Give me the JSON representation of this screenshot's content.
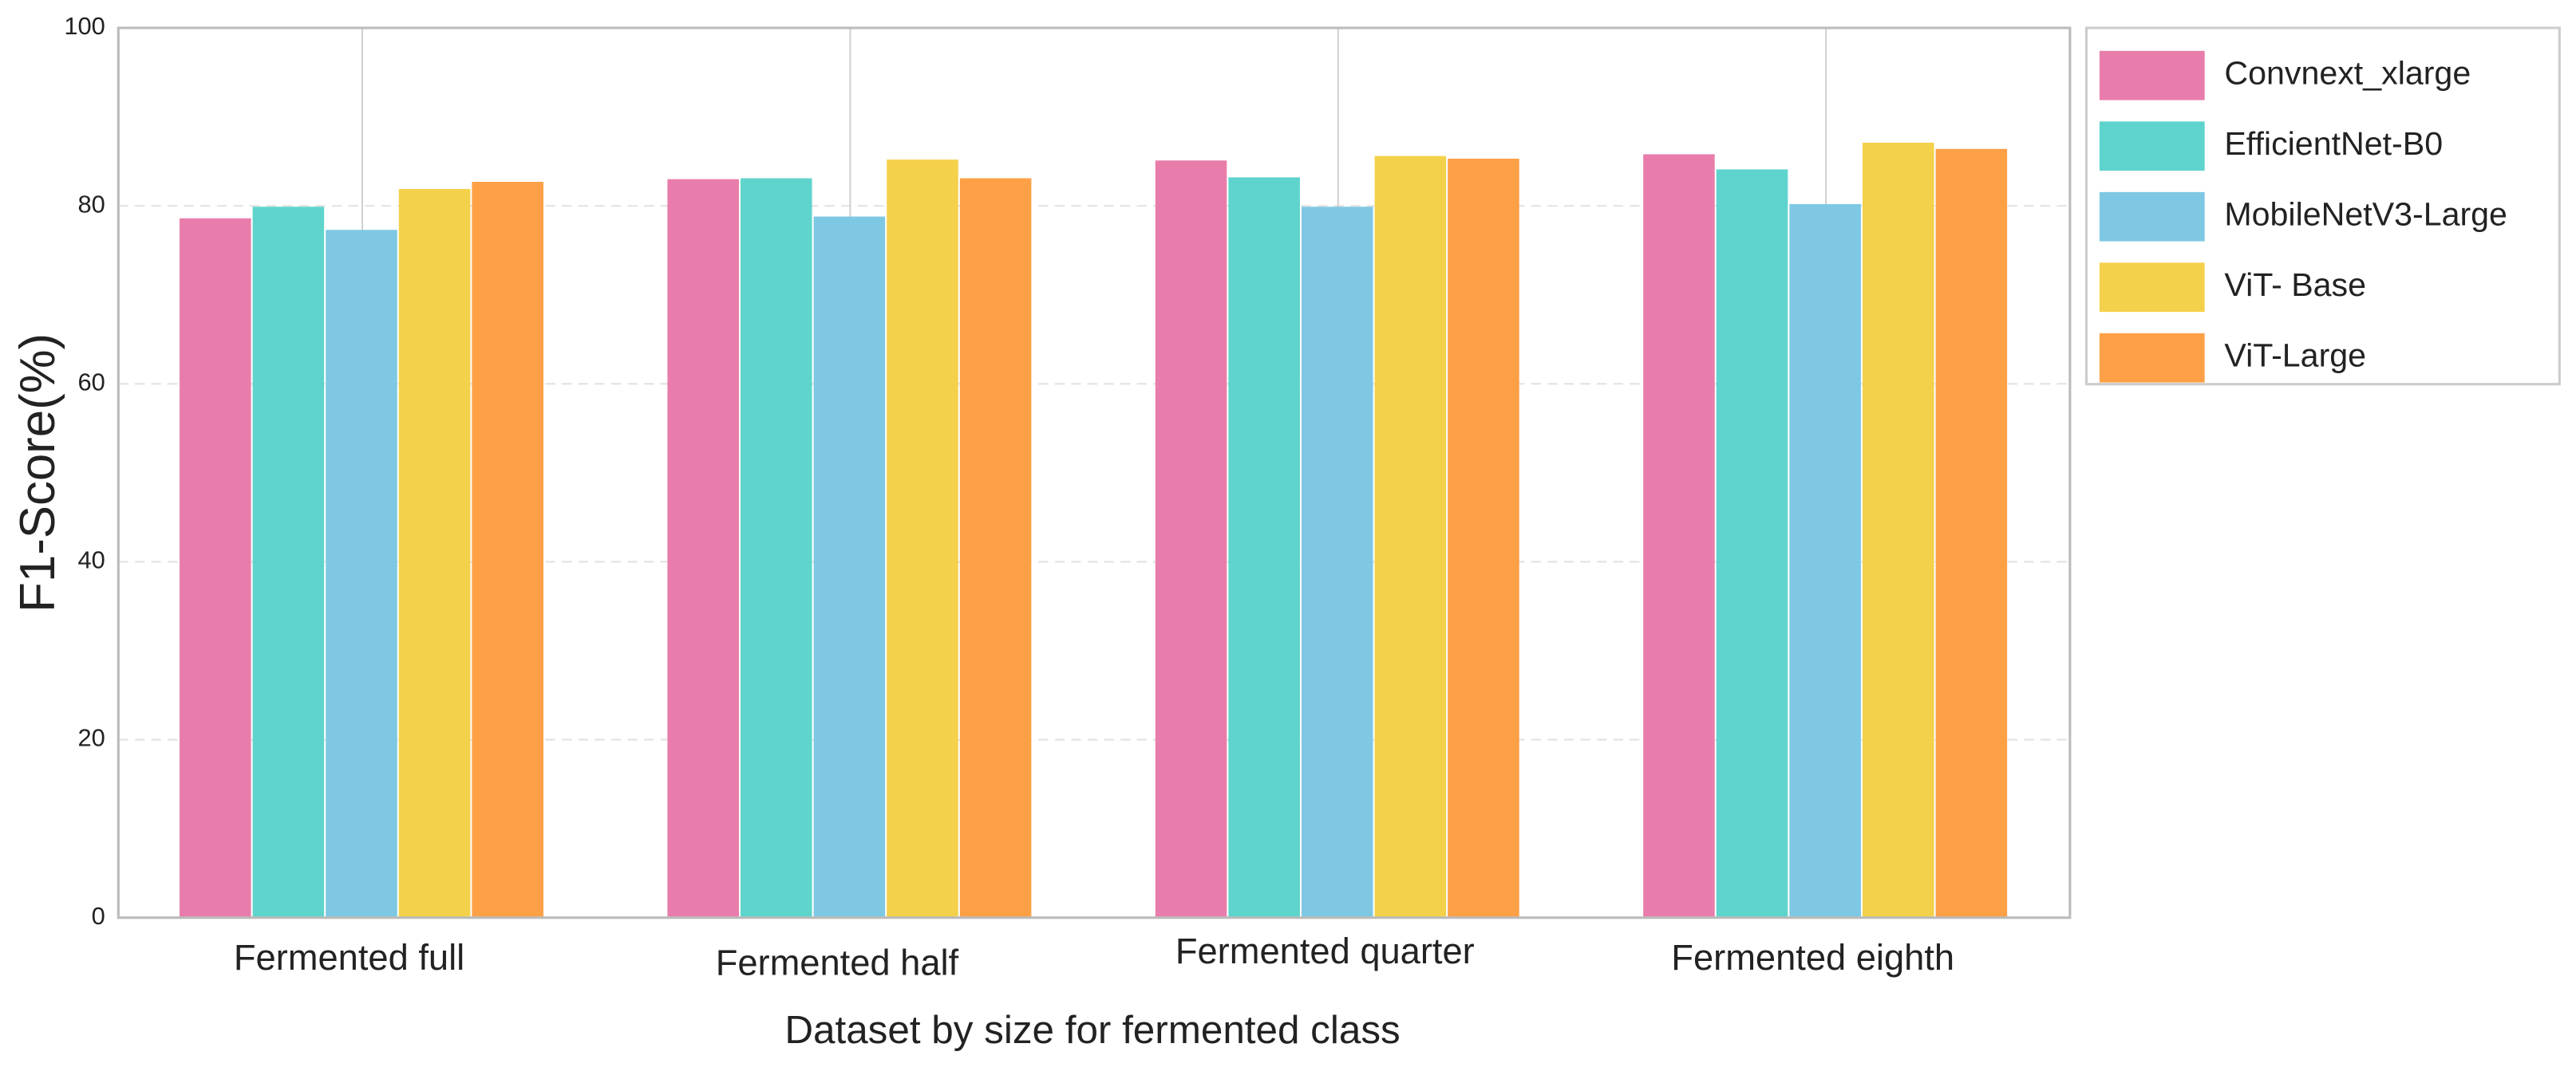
{
  "chart_data": {
    "type": "bar",
    "x_label": "Dataset by size for fermented class",
    "y_label": "F1-Score(%)",
    "categories": [
      "Fermented full",
      "Fermented half",
      "Fermented quarter",
      "Fermented eighth"
    ],
    "series": [
      {
        "name": "Convnext_xlarge",
        "color": "#e87dab",
        "values": [
          78.6,
          83.0,
          85.1,
          85.8
        ]
      },
      {
        "name": "EfficientNet-B0",
        "color": "#5ed4cc",
        "values": [
          79.9,
          83.1,
          83.2,
          84.1
        ]
      },
      {
        "name": "MobileNetV3-Large",
        "color": "#7ec8e3",
        "values": [
          77.3,
          78.8,
          79.9,
          80.2
        ]
      },
      {
        "name": "ViT- Base",
        "color": "#f4d14a",
        "values": [
          81.9,
          85.2,
          85.6,
          87.1
        ]
      },
      {
        "name": "ViT-Large",
        "color": "#fda046",
        "values": [
          82.7,
          83.1,
          85.3,
          86.4
        ]
      }
    ],
    "ylim": [
      0,
      100
    ],
    "yticks": [
      0,
      20,
      40,
      60,
      80,
      100
    ],
    "grid": true,
    "legend": "outside-right"
  }
}
